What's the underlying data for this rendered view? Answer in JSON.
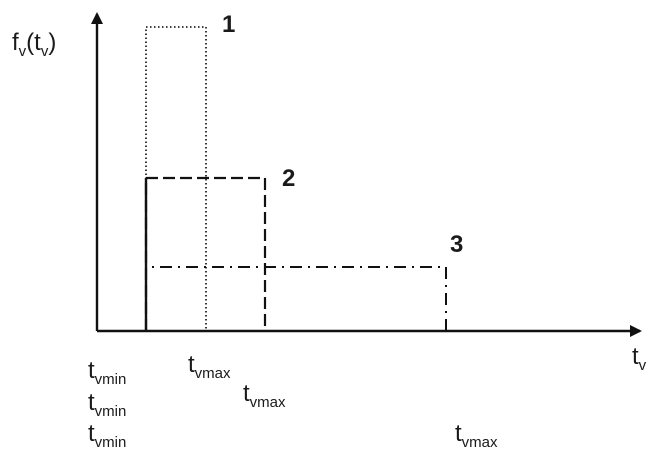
{
  "axes": {
    "y_label_main": "f",
    "y_label_sub": "v",
    "y_label_paren_open": "(t",
    "y_label_paren_sub": "v",
    "y_label_paren_close": ")",
    "x_label_main": "t",
    "x_label_sub": "v"
  },
  "curves": [
    {
      "number": "1",
      "style": "dotted"
    },
    {
      "number": "2",
      "style": "dashed"
    },
    {
      "number": "3",
      "style": "dash-dot"
    }
  ],
  "tick_labels": {
    "tmin_main": "t",
    "tmin_sub": "vmin",
    "tmax_main": "t",
    "tmax_sub": "vmax"
  },
  "colors": {
    "ink": "#111111",
    "background": "#ffffff"
  }
}
